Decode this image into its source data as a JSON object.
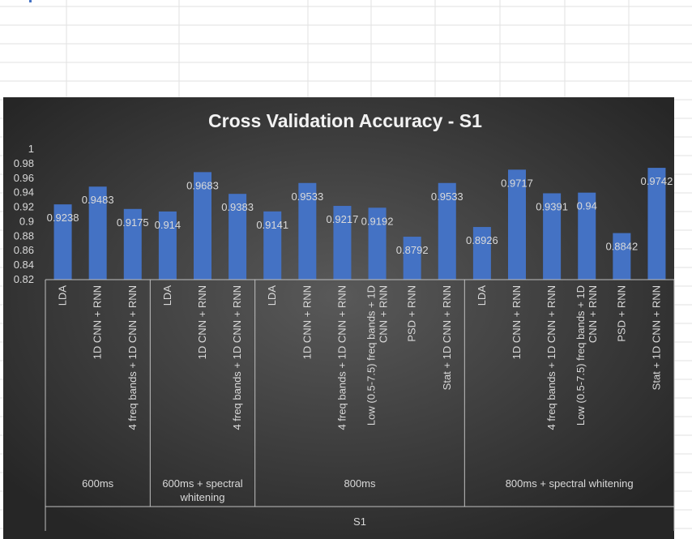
{
  "colors": {
    "bar": "#4472c4",
    "chart_bg_center": "#595959",
    "chart_bg_edge": "#262626",
    "text": "#d9d9d9",
    "title": "#f2f2f2",
    "axis_line": "#bfbfbf"
  },
  "chart_data": {
    "type": "bar",
    "title": "Cross Validation Accuracy - S1",
    "xlabel": "",
    "ylabel": "",
    "ylim": [
      0.82,
      1
    ],
    "y_ticks": [
      "1",
      "0.98",
      "0.96",
      "0.94",
      "0.92",
      "0.9",
      "0.88",
      "0.86",
      "0.84",
      "0.82"
    ],
    "grid": false,
    "legend": "none",
    "top_group": "S1",
    "groups": [
      {
        "name": "600ms",
        "bars": [
          {
            "category": "LDA",
            "value": 0.9238,
            "label": "0.9238"
          },
          {
            "category": "1D CNN + RNN",
            "value": 0.9483,
            "label": "0.9483"
          },
          {
            "category": "4 freq bands + 1D CNN + RNN",
            "value": 0.9175,
            "label": "0.9175"
          }
        ]
      },
      {
        "name": "600ms + spectral whitening",
        "bars": [
          {
            "category": "LDA",
            "value": 0.914,
            "label": "0.914"
          },
          {
            "category": "1D CNN + RNN",
            "value": 0.9683,
            "label": "0.9683"
          },
          {
            "category": "4 freq bands + 1D CNN + RNN",
            "value": 0.9383,
            "label": "0.9383"
          }
        ]
      },
      {
        "name": "800ms",
        "bars": [
          {
            "category": "LDA",
            "value": 0.9141,
            "label": "0.9141"
          },
          {
            "category": "1D CNN + RNN",
            "value": 0.9533,
            "label": "0.9533"
          },
          {
            "category": "4 freq bands + 1D CNN + RNN",
            "value": 0.9217,
            "label": "0.9217"
          },
          {
            "category": "Low (0.5-7.5) freq bands + 1D CNN + RNN",
            "value": 0.9192,
            "label": "0.9192"
          },
          {
            "category": "PSD + RNN",
            "value": 0.8792,
            "label": "0.8792"
          },
          {
            "category": "Stat + 1D CNN + RNN",
            "value": 0.9533,
            "label": "0.9533"
          }
        ]
      },
      {
        "name": "800ms + spectral whitening",
        "bars": [
          {
            "category": "LDA",
            "value": 0.8926,
            "label": "0.8926"
          },
          {
            "category": "1D CNN + RNN",
            "value": 0.9717,
            "label": "0.9717"
          },
          {
            "category": "4 freq bands + 1D CNN + RNN",
            "value": 0.9391,
            "label": "0.9391"
          },
          {
            "category": "Low (0.5-7.5) freq bands + 1D CNN + RNN",
            "value": 0.94,
            "label": "0.94"
          },
          {
            "category": "PSD + RNN",
            "value": 0.8842,
            "label": "0.8842"
          },
          {
            "category": "Stat + 1D CNN + RNN",
            "value": 0.9742,
            "label": "0.9742"
          }
        ]
      }
    ]
  }
}
